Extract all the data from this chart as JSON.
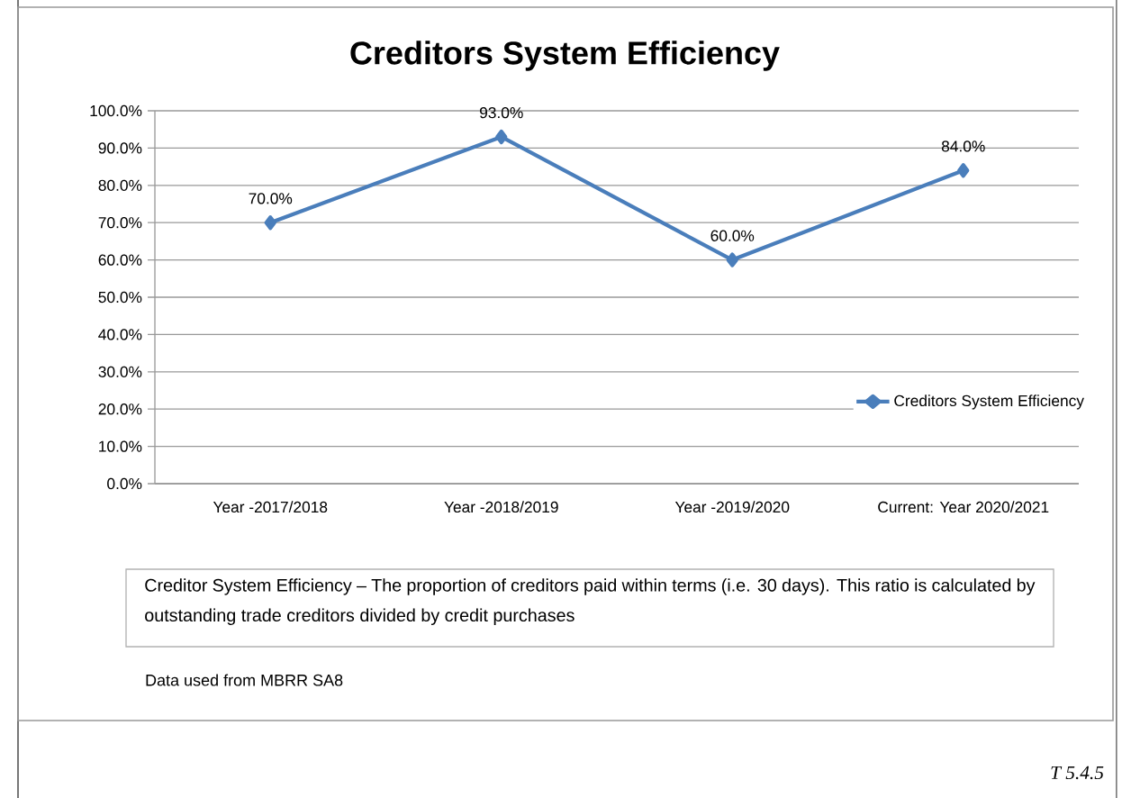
{
  "chart_data": {
    "type": "line",
    "title": "Creditors System Efficiency",
    "categories": [
      "Year -2017/2018",
      "Year -2018/2019",
      "Year -2019/2020",
      "Current: Year 2020/2021"
    ],
    "series": [
      {
        "name": "Creditors System Efficiency",
        "color": "#4a7ebb",
        "values": [
          70,
          93,
          60,
          84
        ],
        "value_labels": [
          "70.0%",
          "93.0%",
          "60.0%",
          "84.0%"
        ]
      }
    ],
    "ylim": [
      0,
      100
    ],
    "yticks": [
      {
        "value": 0,
        "label": "0.0%"
      },
      {
        "value": 10,
        "label": "10.0%"
      },
      {
        "value": 20,
        "label": "20.0%"
      },
      {
        "value": 30,
        "label": "30.0%"
      },
      {
        "value": 40,
        "label": "40.0%"
      },
      {
        "value": 50,
        "label": "50.0%"
      },
      {
        "value": 60,
        "label": "60.0%"
      },
      {
        "value": 70,
        "label": "70.0%"
      },
      {
        "value": 80,
        "label": "80.0%"
      },
      {
        "value": 90,
        "label": "90.0%"
      },
      {
        "value": 100,
        "label": "100.0%"
      }
    ],
    "grid": "y",
    "legend": "right",
    "marker": "diamond",
    "line_style": "solid",
    "annotations": [
      "Creditor System Efficiency – The proportion of creditors paid within terms (i.e. 30 days). This ratio is calculated by outstanding trade creditors divided by credit purchases",
      "Data used from MBRR SA8",
      "T 5.4.5"
    ]
  }
}
